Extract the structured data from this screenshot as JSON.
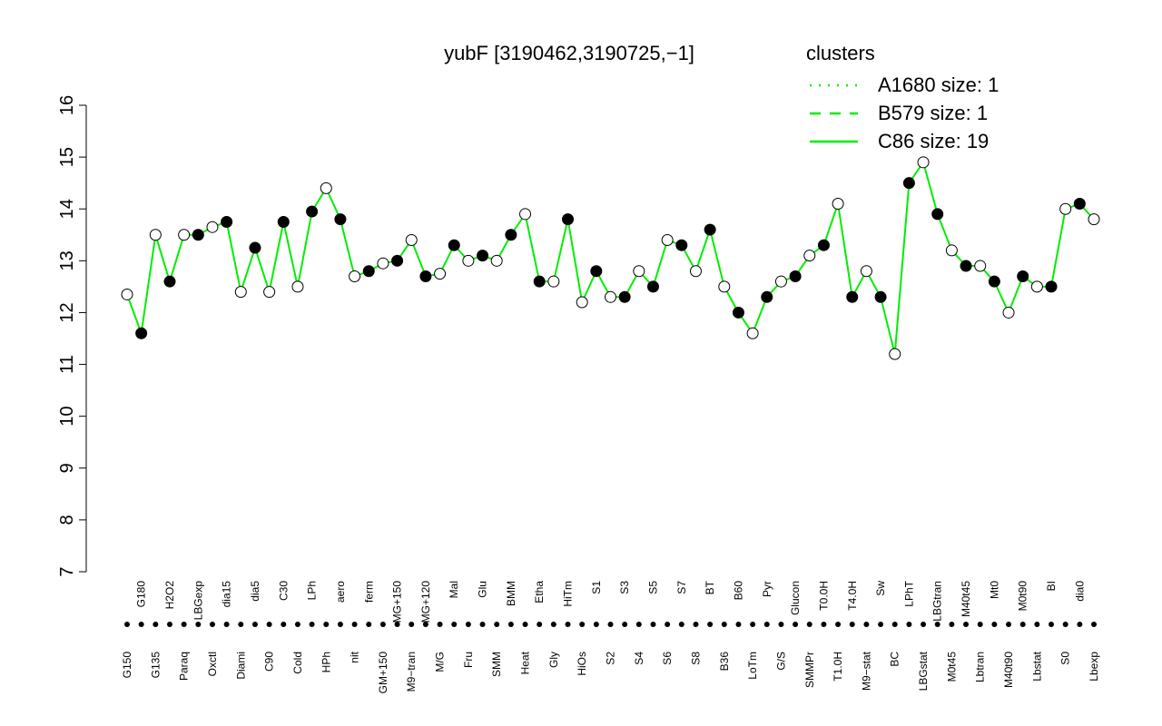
{
  "chart_data": {
    "type": "line",
    "title": "yubF [3190462,3190725,−1]",
    "categories": [
      "G150",
      "G180",
      "G135",
      "H2O2",
      "Paraq",
      "LBGexp",
      "Oxctl",
      "dia15",
      "Diami",
      "dia5",
      "C90",
      "C30",
      "Cold",
      "LPh",
      "HPh",
      "aero",
      "nit",
      "ferm",
      "GM+150",
      "MG+150",
      "M9−tran",
      "MG+120",
      "M/G",
      "Mal",
      "Fru",
      "Glu",
      "SMM",
      "BMM",
      "Heat",
      "Etha",
      "Gly",
      "HiTm",
      "HiOs",
      "S1",
      "S2",
      "S3",
      "S4",
      "S5",
      "S6",
      "S7",
      "S8",
      "BT",
      "B36",
      "B60",
      "LoTm",
      "Pyr",
      "G/S",
      "Glucon",
      "SMMPr",
      "T0.0H",
      "T1.0H",
      "T4.0H",
      "M9−stat",
      "Sw",
      "BC",
      "LPhT",
      "LBGstat",
      "LBGtran",
      "M0t45",
      "M40t45",
      "Lbtran",
      "Mt0",
      "M40t90",
      "M0t90",
      "Lbstat",
      "BI",
      "S0",
      "dia0",
      "Lbexp"
    ],
    "values": [
      12.35,
      11.6,
      13.5,
      12.6,
      13.5,
      13.5,
      13.65,
      13.75,
      12.4,
      13.25,
      12.4,
      13.75,
      12.5,
      13.95,
      14.4,
      13.8,
      12.7,
      12.8,
      12.95,
      13.0,
      13.4,
      12.7,
      12.75,
      13.3,
      13.0,
      13.1,
      13.0,
      13.5,
      13.9,
      12.6,
      12.6,
      13.8,
      12.2,
      12.8,
      12.3,
      12.3,
      12.8,
      12.5,
      13.4,
      13.3,
      12.8,
      13.6,
      12.5,
      12.0,
      11.6,
      12.3,
      12.6,
      12.7,
      13.1,
      13.3,
      14.1,
      12.3,
      12.8,
      12.3,
      11.2,
      14.5,
      14.9,
      13.9,
      13.2,
      12.9,
      12.9,
      12.6,
      12.0,
      12.7,
      12.5,
      12.5,
      14.0,
      14.1,
      13.8
    ],
    "color": "#00ee00",
    "ylim": [
      7,
      16
    ],
    "yticks": [
      7,
      8,
      9,
      10,
      11,
      12,
      13,
      14,
      15,
      16
    ],
    "legend_title": "clusters",
    "legend": [
      {
        "name": "A1680 size: 1",
        "dash": "dotted"
      },
      {
        "name": "B579 size: 1",
        "dash": "dashed"
      },
      {
        "name": "C86 size: 19",
        "dash": "solid"
      }
    ]
  }
}
